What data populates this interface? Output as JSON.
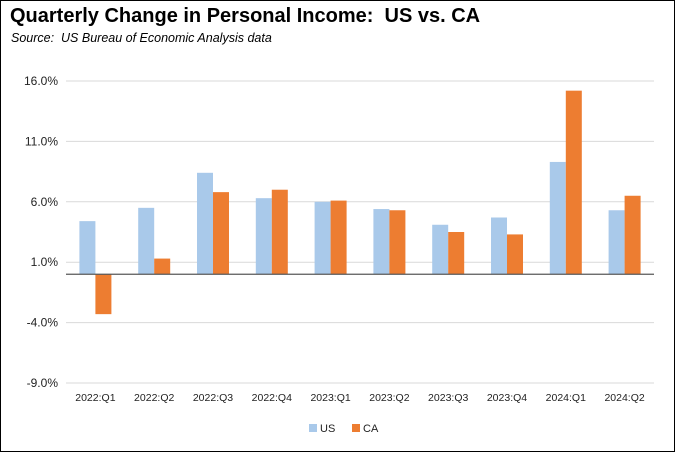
{
  "chart_data": {
    "type": "bar",
    "title": "Quarterly Change in Personal Income:  US vs. CA",
    "subtitle": "Source:  US Bureau of Economic Analysis data",
    "categories": [
      "2022:Q1",
      "2022:Q2",
      "2022:Q3",
      "2022:Q4",
      "2023:Q1",
      "2023:Q2",
      "2023:Q3",
      "2023:Q4",
      "2024:Q1",
      "2024:Q2"
    ],
    "series": [
      {
        "name": "US",
        "color": "#a9c9ea",
        "values": [
          4.4,
          5.5,
          8.4,
          6.3,
          6.0,
          5.4,
          4.1,
          4.7,
          9.3,
          5.3
        ]
      },
      {
        "name": "CA",
        "color": "#ed7d31",
        "values": [
          -3.3,
          1.3,
          6.8,
          7.0,
          6.1,
          5.3,
          3.5,
          3.3,
          15.2,
          6.5
        ]
      }
    ],
    "yticks": [
      16.0,
      11.0,
      6.0,
      1.0,
      -4.0,
      -9.0
    ],
    "ytick_labels": [
      "16.0%",
      "11.0%",
      "6.0%",
      "1.0%",
      "-4.0%",
      "-9.0%"
    ],
    "ylim": [
      -9.0,
      16.0
    ],
    "xlabel": "",
    "ylabel": "",
    "grid": true,
    "legend": "bottom-center"
  }
}
